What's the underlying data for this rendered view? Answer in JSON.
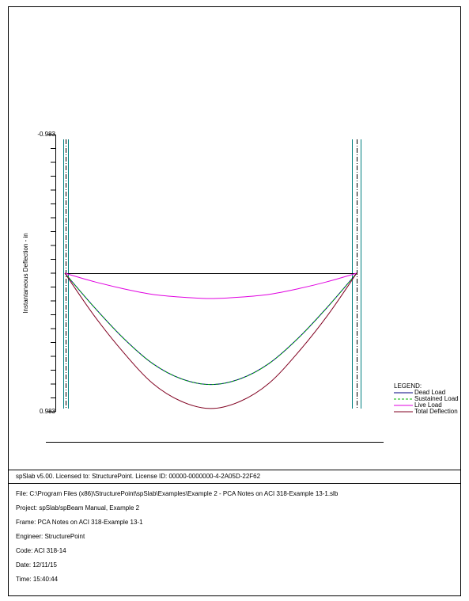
{
  "chart_data": {
    "type": "line",
    "y_label": "Instantaneous Deflection - in",
    "x": [
      0,
      1,
      2,
      3,
      4,
      5,
      6,
      7,
      8,
      9,
      10
    ],
    "xlim": [
      0,
      10
    ],
    "ylim": [
      -0.983,
      0.983
    ],
    "yticks": [
      -0.983,
      0.983
    ],
    "invert_y": true,
    "legend_title": "LEGEND:",
    "series": [
      {
        "name": "Dead Load",
        "color": "#000080",
        "dash": "",
        "values": [
          0,
          0.24,
          0.46,
          0.64,
          0.75,
          0.79,
          0.75,
          0.64,
          0.46,
          0.24,
          0
        ]
      },
      {
        "name": "Sustained Load",
        "color": "#00b000",
        "dash": "3,2",
        "values": [
          0,
          0.24,
          0.46,
          0.64,
          0.75,
          0.79,
          0.75,
          0.64,
          0.46,
          0.24,
          0
        ]
      },
      {
        "name": "Live Load",
        "color": "#e000e0",
        "dash": "",
        "values": [
          0,
          0.06,
          0.11,
          0.15,
          0.17,
          0.18,
          0.17,
          0.15,
          0.11,
          0.06,
          0
        ]
      },
      {
        "name": "Total Deflection",
        "color": "#800020",
        "dash": "",
        "values": [
          0,
          0.3,
          0.56,
          0.78,
          0.91,
          0.96,
          0.91,
          0.78,
          0.56,
          0.3,
          0
        ]
      }
    ]
  },
  "footer": {
    "license": "spSlab v5.00. Licensed to: StructurePoint. License ID: 00000-0000000-4-2A05D-22F62",
    "lines": [
      "File: C:\\Program Files (x86)\\StructurePoint\\spSlab\\Examples\\Example 2 - PCA Notes on ACI 318-Example 13-1.slb",
      "Project: spSlab/spBeam Manual, Example 2",
      "Frame: PCA Notes on ACI 318-Example 13-1",
      "Engineer: StructurePoint",
      "Code: ACI 318-14",
      "Date: 12/11/15",
      "Time: 15:40:44"
    ]
  }
}
